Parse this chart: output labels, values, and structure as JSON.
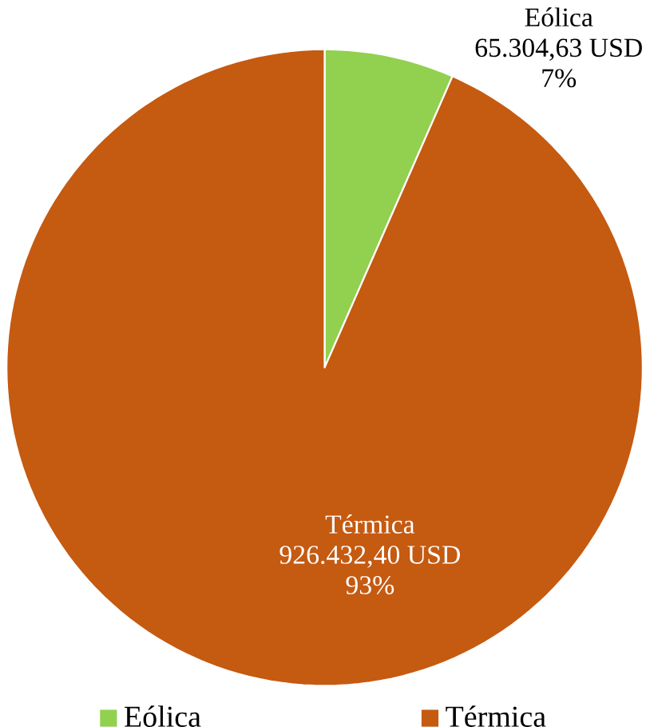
{
  "chart_data": {
    "type": "pie",
    "categories": [
      "Eólica",
      "Térmica"
    ],
    "values": [
      65304.63,
      926432.4
    ],
    "colors": [
      "#92d050",
      "#c55a11"
    ],
    "value_labels": [
      "65.304,63 USD",
      "926.432,40 USD"
    ],
    "annotations": [
      "7%",
      "93%"
    ],
    "legend": "bottom"
  }
}
